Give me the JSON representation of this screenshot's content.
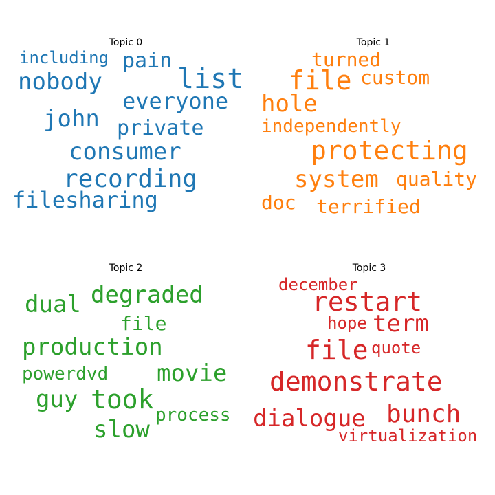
{
  "topics": [
    {
      "title": "Topic 0",
      "color": "#1f77b4",
      "words": [
        "including",
        "pain",
        "nobody",
        "list",
        "everyone",
        "john",
        "private",
        "consumer",
        "recording",
        "filesharing"
      ]
    },
    {
      "title": "Topic 1",
      "color": "#ff7f0e",
      "words": [
        "turned",
        "file",
        "custom",
        "hole",
        "independently",
        "protecting",
        "system",
        "quality",
        "doc",
        "terrified"
      ]
    },
    {
      "title": "Topic 2",
      "color": "#2ca02c",
      "words": [
        "degraded",
        "dual",
        "file",
        "production",
        "powerdvd",
        "movie",
        "guy",
        "took",
        "process",
        "slow"
      ]
    },
    {
      "title": "Topic 3",
      "color": "#d62728",
      "words": [
        "december",
        "restart",
        "hope",
        "term",
        "file",
        "quote",
        "demonstrate",
        "bunch",
        "dialogue",
        "virtualization"
      ]
    }
  ]
}
